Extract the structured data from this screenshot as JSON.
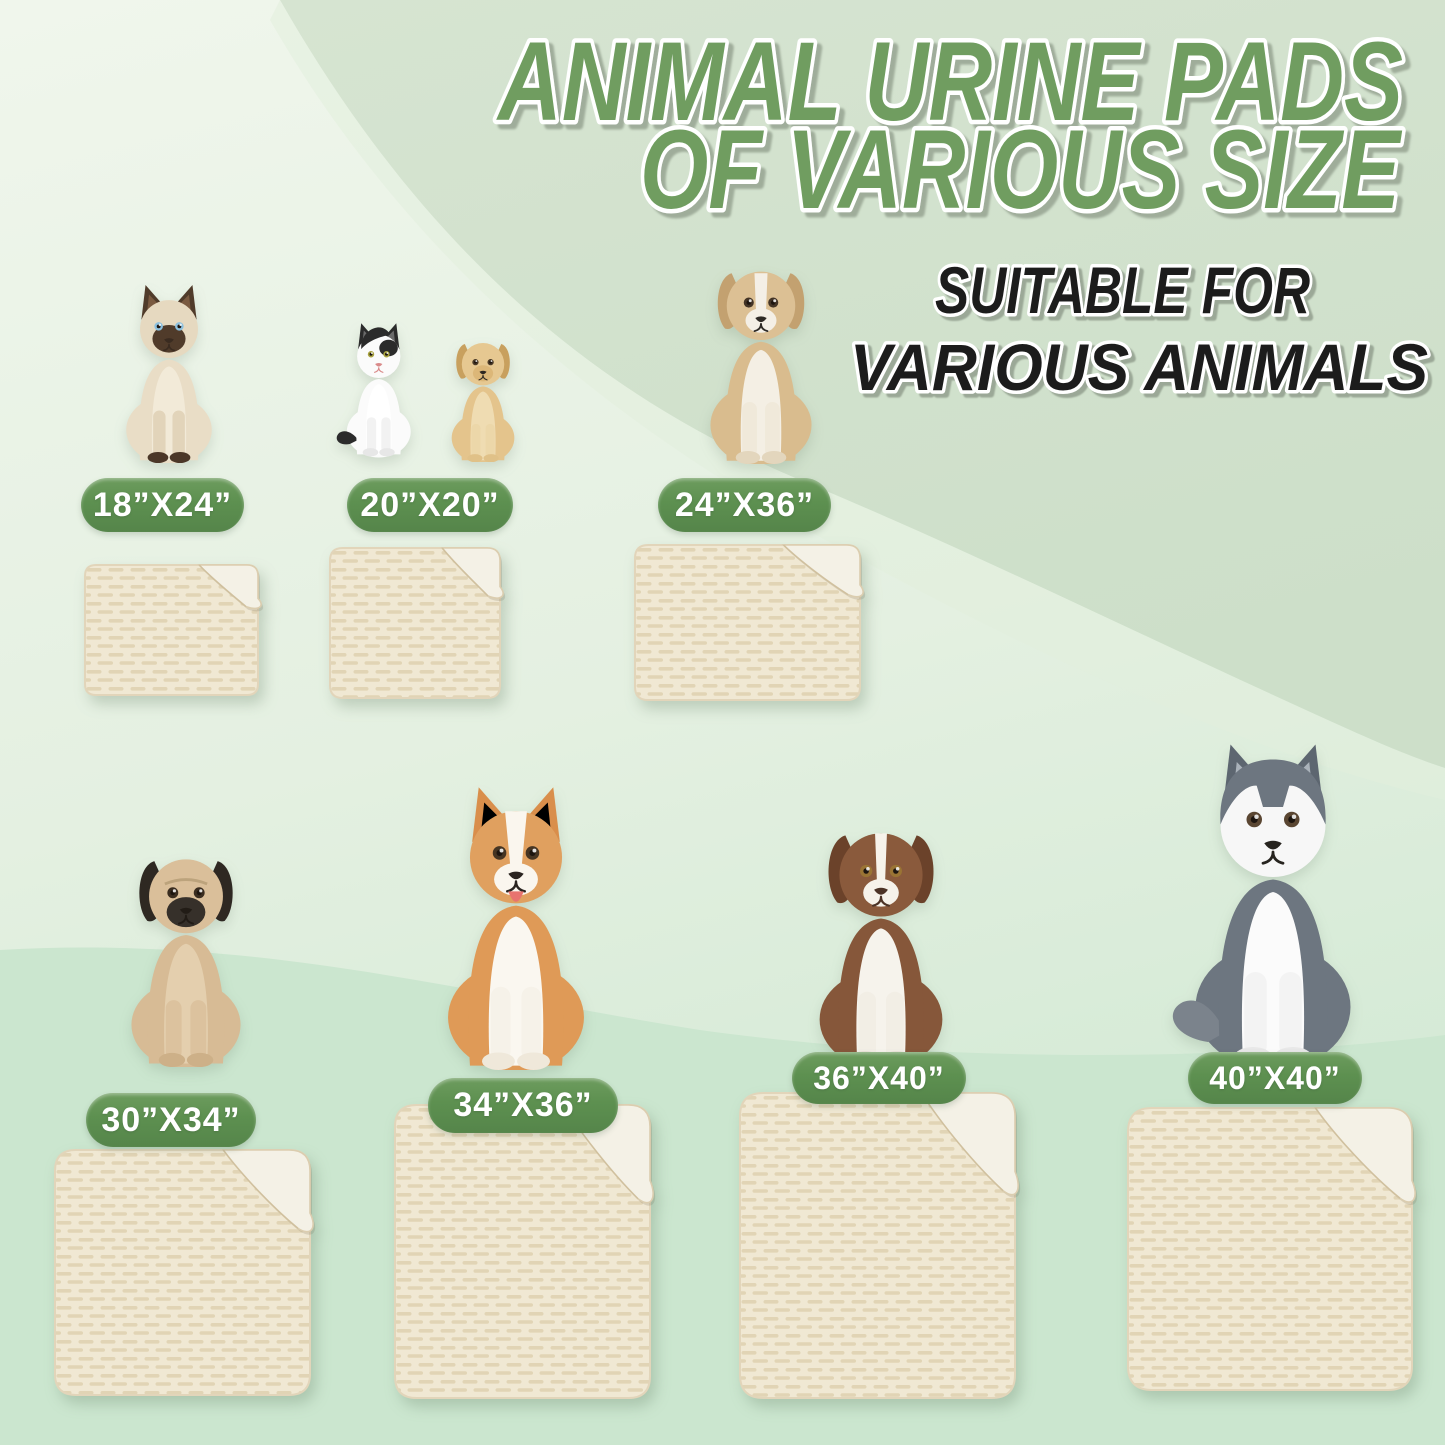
{
  "header": {
    "title_line1": "ANIMAL URINE PADS",
    "title_line2": "OF VARIOUS SIZE",
    "subtitle_line1": "SUITABLE FOR",
    "subtitle_line2": "VARIOUS ANIMALS"
  },
  "pads": [
    {
      "id": "18x24",
      "size_label": "18”X24”",
      "animal": "siamese-cat"
    },
    {
      "id": "20x20",
      "size_label": "20”X20”",
      "animal": "black-white-cat-and-labrador-puppy"
    },
    {
      "id": "24x36",
      "size_label": "24”X36”",
      "animal": "tan-white-dog"
    },
    {
      "id": "30x34",
      "size_label": "30”X34”",
      "animal": "pug"
    },
    {
      "id": "34x36",
      "size_label": "34”X36”",
      "animal": "corgi"
    },
    {
      "id": "36x40",
      "size_label": "36”X40”",
      "animal": "australian-shepherd"
    },
    {
      "id": "40x40",
      "size_label": "40”X40”",
      "animal": "husky"
    }
  ],
  "colors": {
    "title_green": "#6f9d60",
    "subtitle_black": "#1c1c1c",
    "badge_green": "#5d9050",
    "pad_cream": "#f0e8d3",
    "pad_fold": "#f4f1e6",
    "bg_pale": "#eef5ea",
    "bg_sage": "#d2e2ce",
    "bg_mint": "#cbe6cf"
  }
}
